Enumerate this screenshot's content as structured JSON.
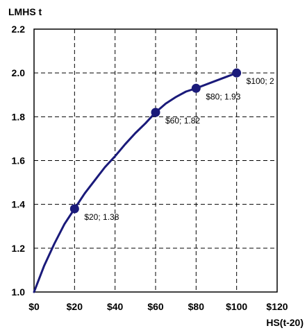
{
  "chart_data": {
    "type": "line",
    "xlabel": "HS(t-20)",
    "ylabel": "LMHS t",
    "xlim": [
      0,
      120
    ],
    "ylim": [
      1.0,
      2.2
    ],
    "x_ticks": [
      "$0",
      "$20",
      "$40",
      "$60",
      "$80",
      "$100",
      "$120"
    ],
    "y_ticks": [
      "1.0",
      "1.2",
      "1.4",
      "1.6",
      "1.8",
      "2.0",
      "2.2"
    ],
    "grid": true,
    "series": [
      {
        "curve": [
          [
            0,
            1.0
          ],
          [
            5,
            1.12
          ],
          [
            10,
            1.22
          ],
          [
            15,
            1.31
          ],
          [
            20,
            1.38
          ],
          [
            25,
            1.45
          ],
          [
            30,
            1.51
          ],
          [
            35,
            1.57
          ],
          [
            40,
            1.62
          ],
          [
            45,
            1.675
          ],
          [
            50,
            1.725
          ],
          [
            55,
            1.77
          ],
          [
            60,
            1.82
          ],
          [
            65,
            1.86
          ],
          [
            70,
            1.89
          ],
          [
            75,
            1.915
          ],
          [
            80,
            1.93
          ],
          [
            90,
            1.965
          ],
          [
            100,
            2.0
          ]
        ],
        "points": [
          {
            "x": 20,
            "y": 1.38,
            "label": "$20; 1.38"
          },
          {
            "x": 60,
            "y": 1.82,
            "label": "$60; 1.82"
          },
          {
            "x": 80,
            "y": 1.93,
            "label": "$80; 1.93"
          },
          {
            "x": 100,
            "y": 2.0,
            "label": "$100; 2"
          }
        ]
      }
    ],
    "colors": {
      "series": "#1a1a7a"
    }
  }
}
